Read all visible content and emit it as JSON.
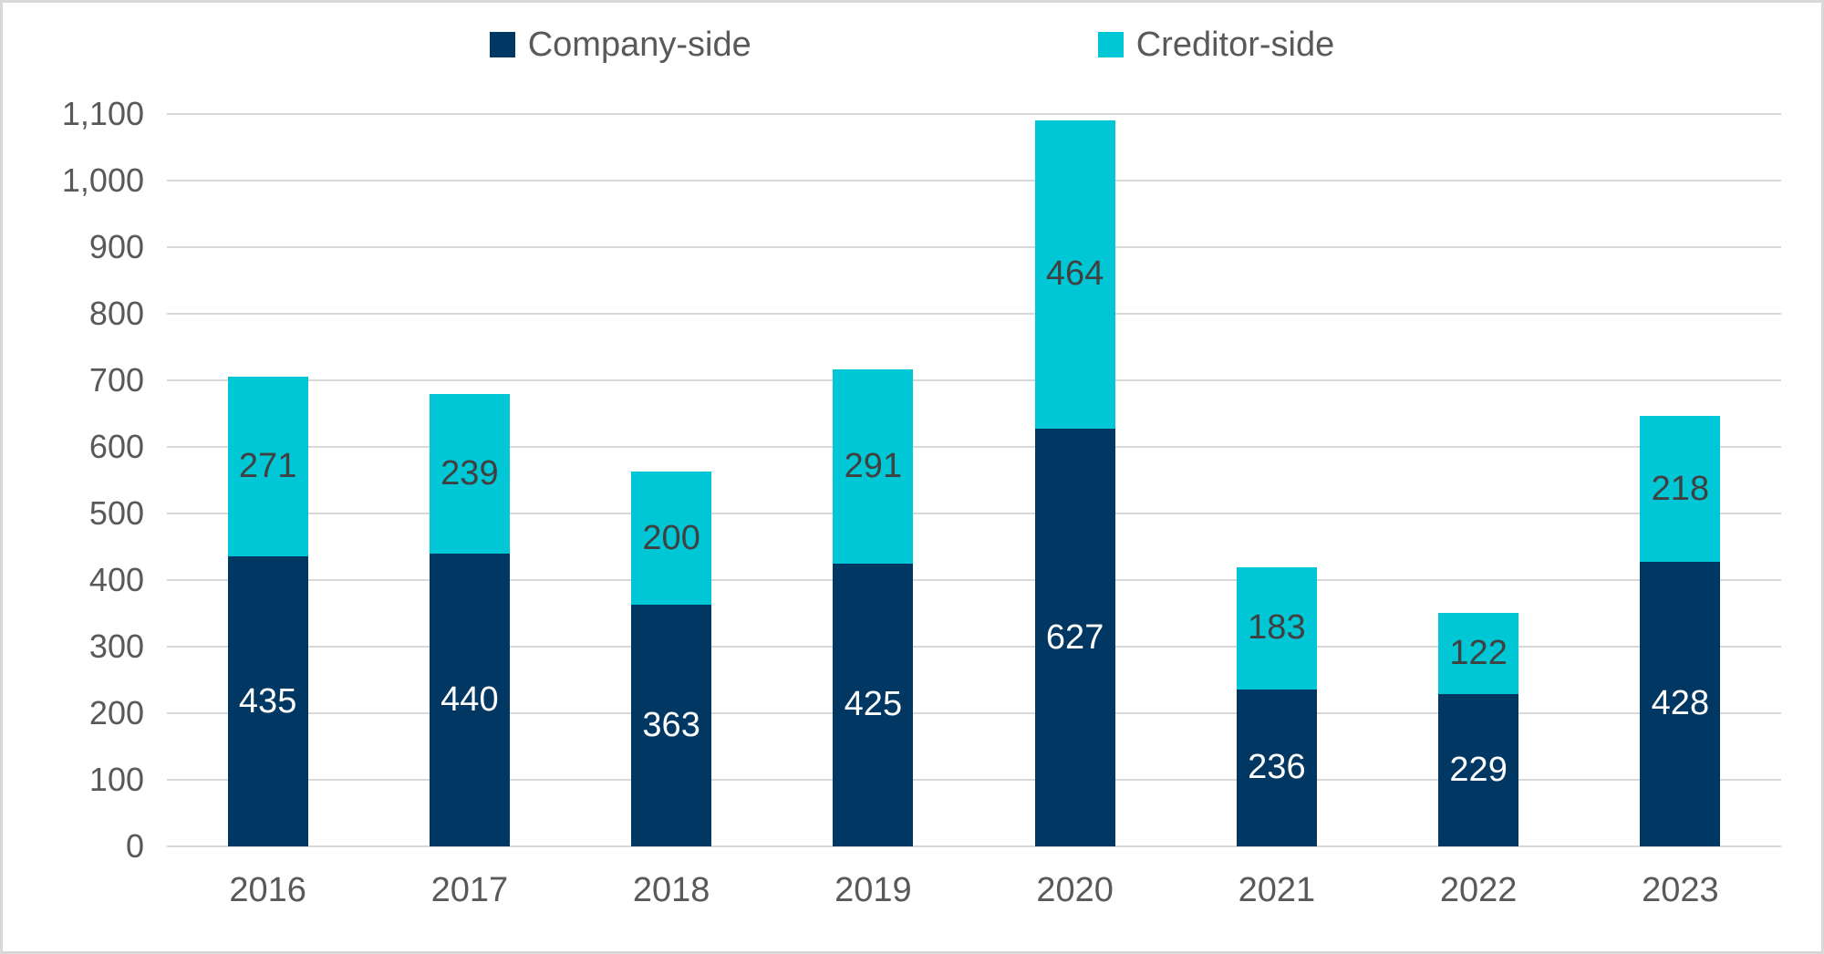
{
  "chart_data": {
    "type": "bar",
    "stacked": true,
    "title": "",
    "xlabel": "",
    "ylabel": "",
    "categories": [
      "2016",
      "2017",
      "2018",
      "2019",
      "2020",
      "2021",
      "2022",
      "2023"
    ],
    "series": [
      {
        "name": "Company-side",
        "color": "#003763",
        "label_color": "#ffffff",
        "values": [
          435,
          440,
          363,
          425,
          627,
          236,
          229,
          428
        ]
      },
      {
        "name": "Creditor-side",
        "color": "#00c7d6",
        "label_color": "#404040",
        "values": [
          271,
          239,
          200,
          291,
          464,
          183,
          122,
          218
        ]
      }
    ],
    "ylim": [
      0,
      1100
    ],
    "ytick_step": 100,
    "ytick_labels": [
      "0",
      "100",
      "200",
      "300",
      "400",
      "500",
      "600",
      "700",
      "800",
      "900",
      "1,000",
      "1,100"
    ],
    "grid": true,
    "gridline_color": "#d9d9d9",
    "axis_text_color": "#595959",
    "legend_position": "top"
  }
}
